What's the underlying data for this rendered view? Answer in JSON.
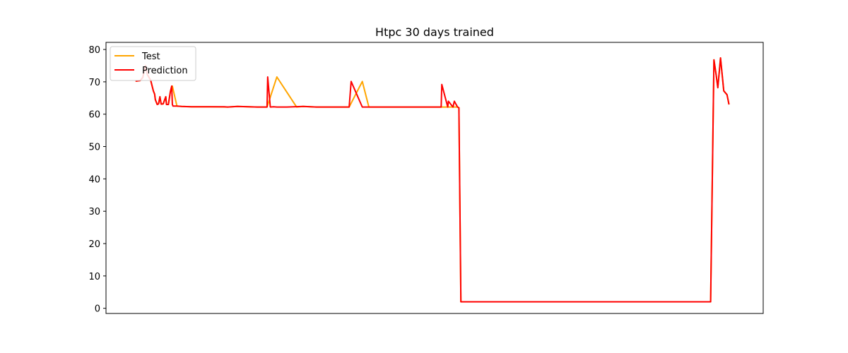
{
  "chart_data": {
    "type": "line",
    "title": "Htpc 30 days trained",
    "xlabel": "",
    "ylabel": "",
    "x_range": [
      0,
      1000
    ],
    "ylim": [
      -1.6,
      82.2
    ],
    "y_ticks": [
      0,
      10,
      20,
      30,
      40,
      50,
      60,
      70,
      80
    ],
    "x_tick_labels_visible": false,
    "grid": false,
    "legend": "top-left",
    "series": [
      {
        "name": "Test",
        "color": "#ffa500",
        "x": [
          45,
          52,
          56,
          60,
          63,
          68,
          72,
          74,
          75,
          78,
          80,
          82,
          84,
          87,
          91,
          92,
          95,
          98,
          101,
          108,
          115,
          130,
          160,
          185,
          200,
          230,
          245,
          260,
          290,
          300,
          320,
          360,
          370,
          390,
          400,
          420,
          450,
          480,
          498,
          510,
          520,
          530,
          535,
          537,
          540,
          550,
          920,
          925,
          928,
          931,
          935,
          940,
          945,
          948
        ],
        "y": [
          70.2,
          70.4,
          71.4,
          75.0,
          72.2,
          70.5,
          67.2,
          66.2,
          64.5,
          63.0,
          63.2,
          65.4,
          63.1,
          63.2,
          65.4,
          63.0,
          63.0,
          67.0,
          68.7,
          62.5,
          62.4,
          62.3,
          62.3,
          62.2,
          62.4,
          62.2,
          62.2,
          71.5,
          62.2,
          62.4,
          62.2,
          62.2,
          62.2,
          70.1,
          62.2,
          62.2,
          62.2,
          62.2,
          62.2,
          62.2,
          62.2,
          62.2,
          62.2,
          62.0,
          2.0,
          2.0,
          2.0,
          76.8,
          72.8,
          68.2,
          77.4,
          67.2,
          66.0,
          63.0
        ]
      },
      {
        "name": "Prediction",
        "color": "#ff0000",
        "x": [
          45,
          52,
          56,
          60,
          63,
          68,
          72,
          74,
          75,
          78,
          80,
          82,
          84,
          87,
          91,
          92,
          95,
          98,
          100,
          101,
          102,
          108,
          115,
          130,
          160,
          180,
          185,
          200,
          230,
          240,
          245,
          246,
          250,
          255,
          260,
          265,
          275,
          300,
          320,
          360,
          370,
          373,
          390,
          395,
          400,
          420,
          440,
          450,
          470,
          480,
          490,
          498,
          510,
          511,
          520,
          521,
          528,
          530,
          535,
          537,
          540,
          550,
          600,
          700,
          800,
          900,
          920,
          925,
          928,
          931,
          935,
          940,
          945,
          948
        ],
        "y": [
          70.2,
          70.4,
          71.4,
          75.0,
          72.2,
          70.5,
          67.2,
          66.2,
          64.5,
          63.0,
          63.2,
          65.4,
          63.1,
          63.2,
          65.4,
          63.0,
          63.0,
          67.0,
          68.7,
          63.0,
          62.5,
          62.5,
          62.4,
          62.3,
          62.3,
          62.3,
          62.2,
          62.4,
          62.2,
          62.2,
          62.2,
          71.5,
          62.2,
          62.3,
          62.2,
          62.2,
          62.2,
          62.4,
          62.2,
          62.2,
          62.2,
          70.1,
          62.2,
          62.2,
          62.2,
          62.2,
          62.2,
          62.2,
          62.2,
          62.2,
          62.2,
          62.2,
          62.2,
          69.2,
          62.2,
          64.0,
          62.2,
          64.0,
          62.2,
          62.0,
          2.0,
          2.0,
          2.0,
          2.0,
          2.0,
          2.0,
          2.0,
          76.8,
          72.8,
          68.2,
          77.4,
          67.2,
          66.0,
          63.0
        ]
      }
    ]
  }
}
